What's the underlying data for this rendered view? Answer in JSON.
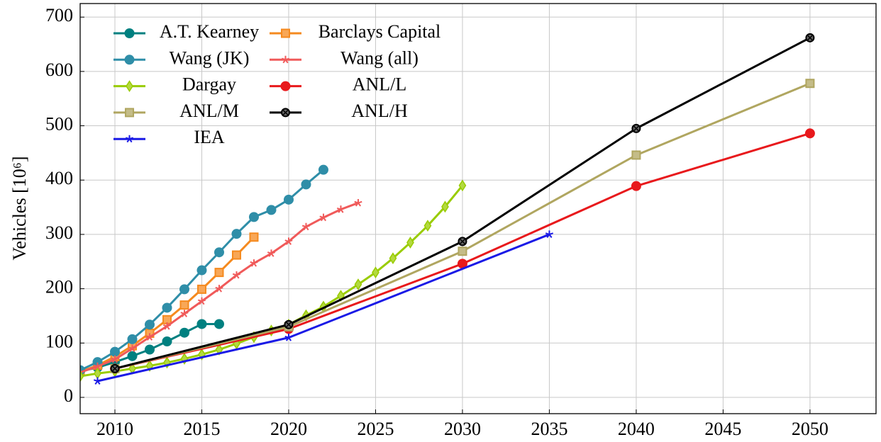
{
  "chart_data": {
    "type": "line",
    "ylabel": "Vehicles [10⁶]",
    "xlim": [
      2008,
      2053.8
    ],
    "ylim": [
      -30,
      725
    ],
    "xticks": [
      2010,
      2015,
      2020,
      2025,
      2030,
      2035,
      2040,
      2045,
      2050
    ],
    "yticks": [
      0,
      100,
      200,
      300,
      400,
      500,
      600,
      700
    ],
    "grid": true,
    "legend": "upper left",
    "series": [
      {
        "name": "A.T. Kearney",
        "color": "#008080",
        "marker": "circle",
        "x": [
          2008,
          2009,
          2010,
          2011,
          2012,
          2013,
          2014,
          2015,
          2016
        ],
        "values": [
          48,
          55,
          65,
          76,
          88,
          103,
          119,
          135,
          135
        ]
      },
      {
        "name": "Barclays Capital",
        "color": "#f58a1f",
        "marker": "square",
        "x": [
          2008,
          2009,
          2010,
          2011,
          2012,
          2013,
          2014,
          2015,
          2016,
          2017,
          2018
        ],
        "values": [
          47,
          59,
          75,
          95,
          118,
          143,
          170,
          199,
          230,
          262,
          295
        ]
      },
      {
        "name": "Wang (JK)",
        "color": "#2f8ea8",
        "marker": "circle",
        "x": [
          2008,
          2009,
          2010,
          2011,
          2012,
          2013,
          2014,
          2015,
          2016,
          2017,
          2018,
          2019,
          2020,
          2021,
          2022
        ],
        "values": [
          50,
          65,
          84,
          107,
          134,
          165,
          199,
          234,
          267,
          301,
          332,
          345,
          364,
          392,
          419
        ]
      },
      {
        "name": "Wang (all)",
        "color": "#f05a5a",
        "marker": "star",
        "x": [
          2008,
          2009,
          2010,
          2011,
          2012,
          2013,
          2014,
          2015,
          2016,
          2017,
          2018,
          2019,
          2020,
          2021,
          2022,
          2023,
          2024
        ],
        "values": [
          46,
          57,
          70,
          90,
          111,
          131,
          154,
          177,
          200,
          225,
          247,
          265,
          287,
          314,
          331,
          346,
          358
        ]
      },
      {
        "name": "Dargay",
        "color": "#99cc00",
        "marker": "diamond",
        "x": [
          2008,
          2009,
          2010,
          2011,
          2012,
          2013,
          2014,
          2015,
          2016,
          2017,
          2018,
          2019,
          2020,
          2021,
          2022,
          2023,
          2024,
          2025,
          2026,
          2027,
          2028,
          2029,
          2030
        ],
        "values": [
          39,
          44,
          48,
          53,
          58,
          64,
          71,
          79,
          88,
          99,
          111,
          123,
          134,
          151,
          167,
          187,
          208,
          230,
          256,
          285,
          316,
          351,
          390
        ]
      },
      {
        "name": "ANL/L",
        "color": "#e8191c",
        "marker": "circle",
        "x": [
          2010,
          2020,
          2030,
          2040,
          2050
        ],
        "values": [
          53,
          126,
          246,
          389,
          486
        ]
      },
      {
        "name": "ANL/M",
        "color": "#b0a660",
        "marker": "square",
        "x": [
          2010,
          2020,
          2030,
          2040,
          2050
        ],
        "values": [
          53,
          130,
          269,
          446,
          578
        ]
      },
      {
        "name": "ANL/H",
        "color": "#000000",
        "marker": "otimes",
        "x": [
          2010,
          2020,
          2030,
          2040,
          2050
        ],
        "values": [
          53,
          134,
          287,
          495,
          662
        ]
      },
      {
        "name": "IEA",
        "color": "#1a1ae6",
        "marker": "star",
        "x": [
          2009,
          2020,
          2035
        ],
        "values": [
          30,
          110,
          300
        ]
      }
    ]
  }
}
